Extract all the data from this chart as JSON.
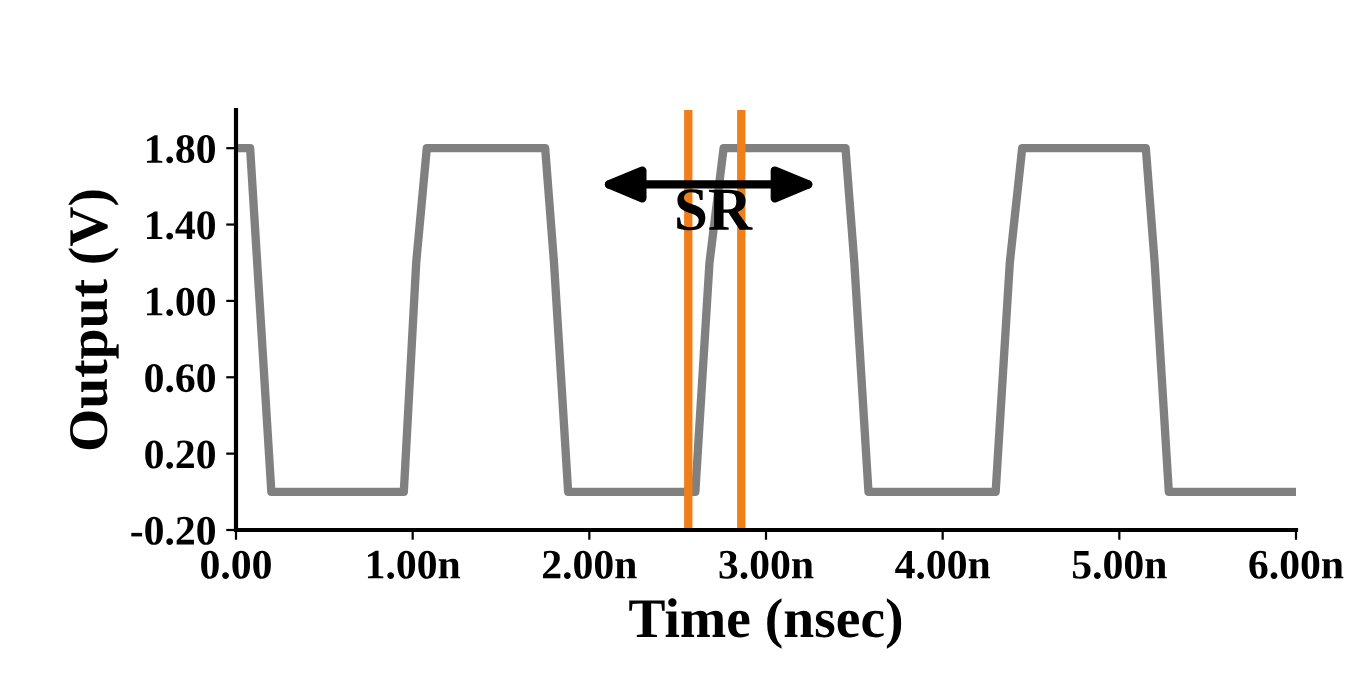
{
  "chart_data": {
    "type": "line",
    "xlabel": "Time (nsec)",
    "ylabel": "Output (V)",
    "series": [
      {
        "color": "#808080",
        "x": [
          0.0,
          0.08,
          0.12,
          0.2,
          0.95,
          1.02,
          1.08,
          1.75,
          1.8,
          1.88,
          2.6,
          2.68,
          2.76,
          3.45,
          3.5,
          3.58,
          4.3,
          4.38,
          4.45,
          5.15,
          5.2,
          5.28,
          6.0
        ],
        "values": [
          1.8,
          1.8,
          1.2,
          0.0,
          0.0,
          1.2,
          1.8,
          1.8,
          1.2,
          0.0,
          0.0,
          1.2,
          1.8,
          1.8,
          1.2,
          0.0,
          0.0,
          1.2,
          1.8,
          1.8,
          1.2,
          0.0,
          0.0
        ]
      }
    ],
    "xlim": [
      0,
      6
    ],
    "ylim": [
      -0.2,
      2.0
    ],
    "xticks": [
      {
        "value": 0,
        "label": "0.00"
      },
      {
        "value": 1,
        "label": "1.00n"
      },
      {
        "value": 2,
        "label": "2.00n"
      },
      {
        "value": 3,
        "label": "3.00n"
      },
      {
        "value": 4,
        "label": "4.00n"
      },
      {
        "value": 5,
        "label": "5.00n"
      },
      {
        "value": 6,
        "label": "6.00n"
      }
    ],
    "yticks": [
      {
        "value": -0.2,
        "label": "-0.20"
      },
      {
        "value": 0.2,
        "label": "0.20"
      },
      {
        "value": 0.6,
        "label": "0.60"
      },
      {
        "value": 1.0,
        "label": "1.00"
      },
      {
        "value": 1.4,
        "label": "1.40"
      },
      {
        "value": 1.8,
        "label": "1.80"
      }
    ],
    "ref_lines": [
      {
        "axis": "x",
        "value": 2.56,
        "label": null,
        "color": "#f07f1a"
      },
      {
        "axis": "x",
        "value": 2.86,
        "label": null,
        "color": "#f07f1a"
      }
    ],
    "annotations": [
      {
        "text": "SR",
        "x": 2.7,
        "y": 1.45
      }
    ],
    "grid": false,
    "legend": false,
    "marker": "none",
    "line_style": "solid"
  }
}
